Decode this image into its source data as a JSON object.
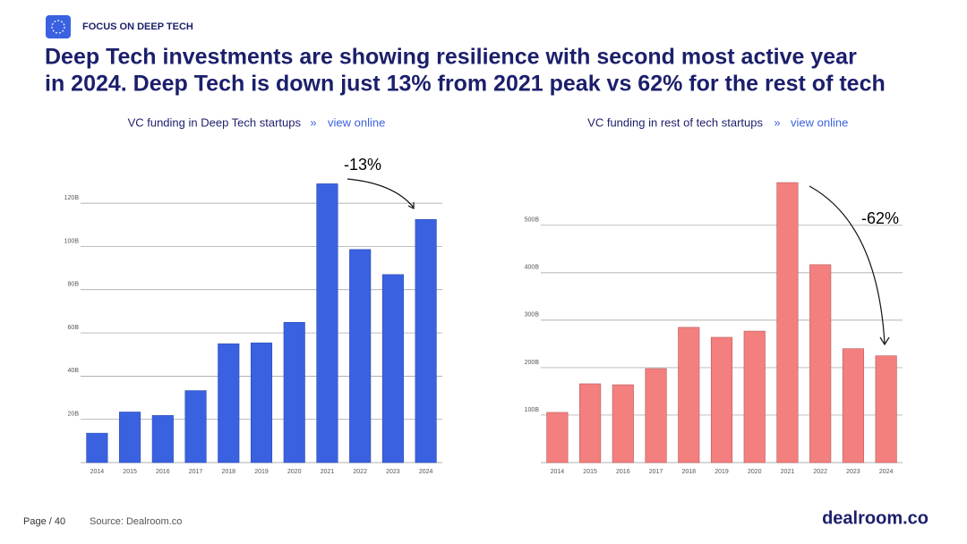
{
  "header": {
    "label": "FOCUS ON DEEP TECH",
    "title": [
      "Deep Tech investments are showing resilience with second most active year",
      "in 2024. Deep Tech is down just 13% from 2021 peak vs 62% for the rest of tech"
    ]
  },
  "chart_data": [
    {
      "type": "bar",
      "subtitle": "VC funding in Deep Tech startups",
      "separator": "»",
      "link": "view online",
      "categories": [
        "2014",
        "2015",
        "2016",
        "2017",
        "2018",
        "2019",
        "2020",
        "2021",
        "2022",
        "2023",
        "2024"
      ],
      "values": [
        13.6,
        23.4,
        21.8,
        33.3,
        55,
        55.4,
        64.9,
        129,
        98.6,
        87,
        112.5
      ],
      "color": "#3a62e0",
      "ylim": [
        0,
        130
      ],
      "yticks": [
        {
          "value": 20,
          "label": "20B"
        },
        {
          "value": 40,
          "label": "40B"
        },
        {
          "value": 60,
          "label": "60B"
        },
        {
          "value": 80,
          "label": "80B"
        },
        {
          "value": 100,
          "label": "100B"
        },
        {
          "value": 120,
          "label": "120B"
        }
      ],
      "grid": true,
      "annotation": "-13%"
    },
    {
      "type": "bar",
      "subtitle": "VC funding in rest of tech startups",
      "separator": "»",
      "link": "view online",
      "categories": [
        "2014",
        "2015",
        "2016",
        "2017",
        "2018",
        "2019",
        "2020",
        "2021",
        "2022",
        "2023",
        "2024"
      ],
      "values": [
        105.7,
        166,
        164,
        198,
        285,
        264,
        277,
        590,
        417,
        240,
        225
      ],
      "color": "#f47f7f",
      "ylim": [
        0,
        592
      ],
      "yticks": [
        {
          "value": 100,
          "label": "100B"
        },
        {
          "value": 200,
          "label": "200B"
        },
        {
          "value": 300,
          "label": "300B"
        },
        {
          "value": 400,
          "label": "400B"
        },
        {
          "value": 500,
          "label": "500B"
        }
      ],
      "grid": true,
      "annotation": "-62%"
    }
  ],
  "footer": {
    "page": "Page / 40",
    "source": "Source: Dealroom.co",
    "logo": "dealroom.co"
  }
}
